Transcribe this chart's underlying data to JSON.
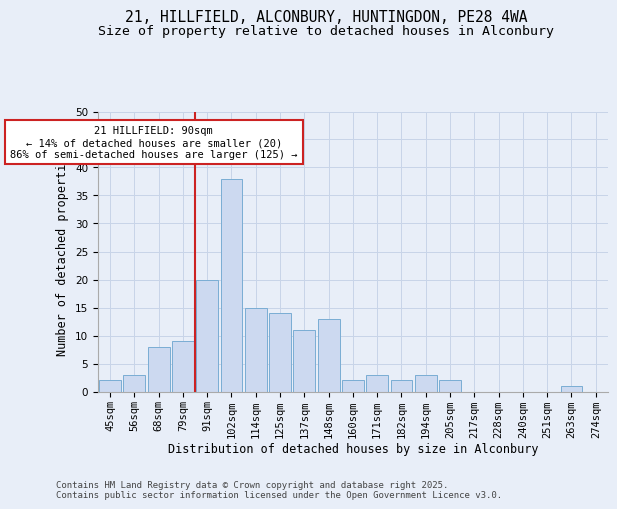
{
  "title_line1": "21, HILLFIELD, ALCONBURY, HUNTINGDON, PE28 4WA",
  "title_line2": "Size of property relative to detached houses in Alconbury",
  "xlabel": "Distribution of detached houses by size in Alconbury",
  "ylabel": "Number of detached properties",
  "categories": [
    "45sqm",
    "56sqm",
    "68sqm",
    "79sqm",
    "91sqm",
    "102sqm",
    "114sqm",
    "125sqm",
    "137sqm",
    "148sqm",
    "160sqm",
    "171sqm",
    "182sqm",
    "194sqm",
    "205sqm",
    "217sqm",
    "228sqm",
    "240sqm",
    "251sqm",
    "263sqm",
    "274sqm"
  ],
  "values": [
    2,
    3,
    8,
    9,
    20,
    38,
    15,
    14,
    11,
    13,
    2,
    3,
    2,
    3,
    2,
    0,
    0,
    0,
    0,
    1,
    0
  ],
  "bar_color": "#ccd9f0",
  "bar_edge_color": "#7aadd4",
  "vline_color": "#cc2222",
  "annotation_text": "21 HILLFIELD: 90sqm\n← 14% of detached houses are smaller (20)\n86% of semi-detached houses are larger (125) →",
  "annotation_box_color": "#ffffff",
  "annotation_box_edge_color": "#cc2222",
  "ylim": [
    0,
    50
  ],
  "yticks": [
    0,
    5,
    10,
    15,
    20,
    25,
    30,
    35,
    40,
    45,
    50
  ],
  "grid_color": "#c8d4e8",
  "background_color": "#e8eef8",
  "footer_text": "Contains HM Land Registry data © Crown copyright and database right 2025.\nContains public sector information licensed under the Open Government Licence v3.0.",
  "title_fontsize": 10.5,
  "subtitle_fontsize": 9.5,
  "axis_label_fontsize": 8.5,
  "tick_fontsize": 7.5,
  "annotation_fontsize": 7.5,
  "footer_fontsize": 6.5
}
